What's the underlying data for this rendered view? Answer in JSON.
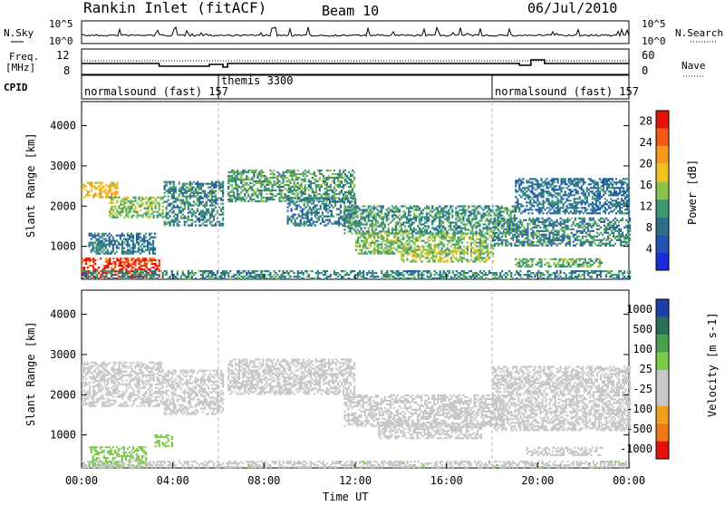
{
  "header": {
    "station": "Rankin Inlet (fitACF)",
    "beam": "Beam 10",
    "date": "06/Jul/2010"
  },
  "panels": {
    "nsky": {
      "label": "N.Sky",
      "right_label": "N.Search",
      "y_ticks_left": [
        "10^5",
        "10^0"
      ],
      "y_ticks_right": [
        "10^5",
        "10^0"
      ]
    },
    "freq": {
      "label_line1": "Freq.",
      "label_line2": "[MHz]",
      "right_label": "Nave",
      "y_ticks_left": [
        "12",
        "8"
      ],
      "y_ticks_right": [
        "60",
        "0"
      ]
    },
    "cpid": {
      "label": "CPID",
      "modes": [
        {
          "name": "normalsound (fast)",
          "id": "157",
          "start_hour": 0
        },
        {
          "name": "themis",
          "id": "3300",
          "start_hour": 6
        },
        {
          "name": "normalsound (fast)",
          "id": "157",
          "start_hour": 18
        }
      ]
    }
  },
  "x_axis": {
    "label": "Time UT",
    "ticks": [
      "00:00",
      "04:00",
      "08:00",
      "12:00",
      "16:00",
      "20:00",
      "00:00"
    ],
    "range_hours": [
      0,
      24
    ]
  },
  "colors": {
    "power_scale": [
      "#1c2bd6",
      "#2553b4",
      "#2c6f87",
      "#3f9a74",
      "#8bc34a",
      "#f2c21b",
      "#f39a1d",
      "#f05a16",
      "#e3120b"
    ],
    "velocity_scale": [
      "#1f3ea8",
      "#2b6f57",
      "#4a9f4e",
      "#7ecb4a",
      "#c8c8c8",
      "#c8c8c8",
      "#f0a020",
      "#f07818",
      "#e3120b"
    ],
    "ground_scatter": "#c0c0c0"
  },
  "chart_data": [
    {
      "type": "heatmap",
      "title": "",
      "xlabel": "Time UT",
      "ylabel": "Slant Range [km]",
      "xlim": [
        0,
        24
      ],
      "ylim": [
        180,
        4600
      ],
      "y_ticks": [
        1000,
        2000,
        3000,
        4000
      ],
      "colorbar": {
        "label": "Power [dB]",
        "ticks": [
          4,
          8,
          12,
          16,
          20,
          24,
          28
        ],
        "range": [
          0,
          30
        ]
      },
      "scatter_bands": [
        {
          "start": 0.0,
          "end": 3.4,
          "lo": 180,
          "hi": 680,
          "value": 27
        },
        {
          "start": 0.0,
          "end": 1.6,
          "lo": 2200,
          "hi": 2600,
          "value": 19
        },
        {
          "start": 1.2,
          "end": 3.6,
          "lo": 1700,
          "hi": 2200,
          "value": 14
        },
        {
          "start": 0.3,
          "end": 3.2,
          "lo": 800,
          "hi": 1300,
          "value": 9
        },
        {
          "start": 3.6,
          "end": 6.2,
          "lo": 1500,
          "hi": 2600,
          "value": 10
        },
        {
          "start": 6.4,
          "end": 12.0,
          "lo": 2100,
          "hi": 2900,
          "value": 12
        },
        {
          "start": 9.0,
          "end": 12.0,
          "lo": 1500,
          "hi": 2200,
          "value": 9
        },
        {
          "start": 11.5,
          "end": 19.0,
          "lo": 1300,
          "hi": 2000,
          "value": 11
        },
        {
          "start": 12.0,
          "end": 18.0,
          "lo": 800,
          "hi": 1300,
          "value": 14
        },
        {
          "start": 14.0,
          "end": 18.0,
          "lo": 600,
          "hi": 900,
          "value": 16
        },
        {
          "start": 18.0,
          "end": 24.0,
          "lo": 1000,
          "hi": 1700,
          "value": 10
        },
        {
          "start": 19.0,
          "end": 22.8,
          "lo": 480,
          "hi": 700,
          "value": 13
        },
        {
          "start": 19.0,
          "end": 24.0,
          "lo": 1800,
          "hi": 2700,
          "value": 8
        },
        {
          "start": 0.0,
          "end": 24.0,
          "lo": 180,
          "hi": 380,
          "value": 10
        }
      ]
    },
    {
      "type": "heatmap",
      "title": "",
      "xlabel": "Time UT",
      "ylabel": "Slant Range [km]",
      "xlim": [
        0,
        24
      ],
      "ylim": [
        180,
        4600
      ],
      "y_ticks": [
        1000,
        2000,
        3000,
        4000
      ],
      "colorbar": {
        "label": "Velocity [m s-1]",
        "ticks": [
          1000,
          500,
          100,
          25,
          -25,
          -100,
          -500,
          -1000
        ],
        "range": [
          -1000,
          1000
        ]
      },
      "scatter_bands": [
        {
          "start": 0.0,
          "end": 3.6,
          "lo": 1700,
          "hi": 2800,
          "value": 0
        },
        {
          "start": 3.6,
          "end": 6.2,
          "lo": 1500,
          "hi": 2600,
          "value": 0
        },
        {
          "start": 6.4,
          "end": 12.0,
          "lo": 2000,
          "hi": 2900,
          "value": 0
        },
        {
          "start": 11.5,
          "end": 18.5,
          "lo": 1200,
          "hi": 2000,
          "value": -40
        },
        {
          "start": 13.0,
          "end": 17.5,
          "lo": 900,
          "hi": 1300,
          "value": -120
        },
        {
          "start": 18.0,
          "end": 24.0,
          "lo": 1100,
          "hi": 2700,
          "value": 0
        },
        {
          "start": 19.5,
          "end": 22.8,
          "lo": 480,
          "hi": 700,
          "value": -250
        },
        {
          "start": 0.3,
          "end": 2.8,
          "lo": 180,
          "hi": 700,
          "value": 150
        },
        {
          "start": 3.2,
          "end": 4.0,
          "lo": 700,
          "hi": 1000,
          "value": 200
        },
        {
          "start": 0.0,
          "end": 24.0,
          "lo": 180,
          "hi": 360,
          "value": 60
        }
      ]
    }
  ]
}
